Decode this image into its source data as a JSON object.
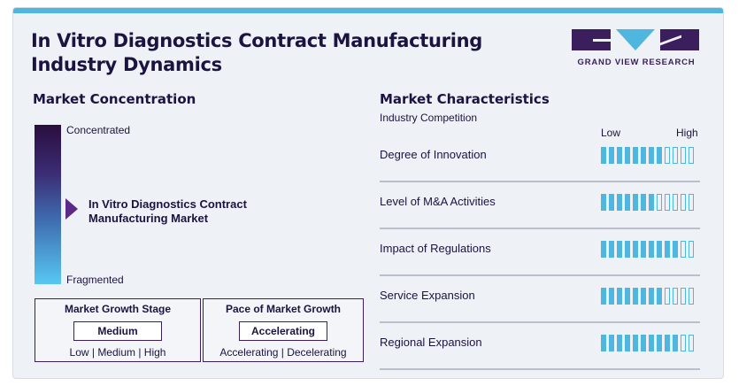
{
  "title": "In Vitro Diagnostics Contract Manufacturing Industry Dynamics",
  "logo": {
    "name": "GRAND VIEW RESEARCH"
  },
  "concentration": {
    "title": "Market Concentration",
    "top_label": "Concentrated",
    "bottom_label": "Fragmented",
    "market_name": "In Vitro Diagnostics Contract\nManufacturing Market",
    "level": 0.5
  },
  "growth_stage": {
    "title": "Market Growth Stage",
    "value": "Medium",
    "options": "Low | Medium | High"
  },
  "growth_pace": {
    "title": "Pace of Market Growth",
    "value": "Accelerating",
    "options": "Accelerating | Decelerating"
  },
  "characteristics": {
    "title": "Market Characteristics",
    "subtitle": "Industry Competition",
    "scale_low": "Low",
    "scale_high": "High",
    "segments_total": 12,
    "rows": [
      {
        "label": "Degree of Innovation",
        "filled": 8
      },
      {
        "label": "Level of M&A Activities",
        "filled": 7
      },
      {
        "label": "Impact of Regulations",
        "filled": 10
      },
      {
        "label": "Service Expansion",
        "filled": 8
      },
      {
        "label": "Regional Expansion",
        "filled": 10
      }
    ]
  },
  "colors": {
    "accent": "#4fb6e0",
    "brand": "#3a1f5c",
    "text": "#1b1340"
  }
}
